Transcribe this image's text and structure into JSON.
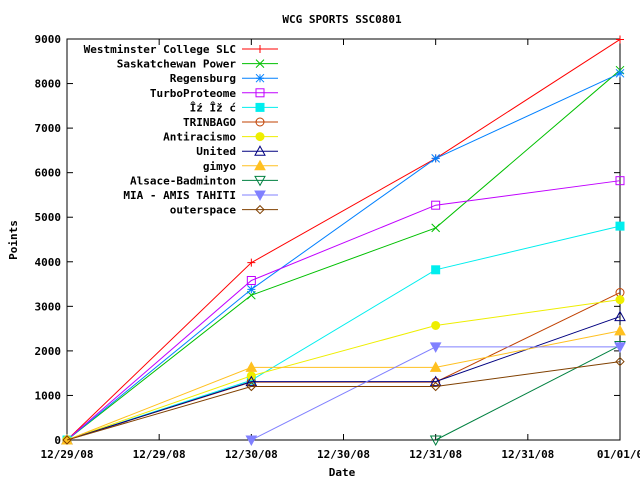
{
  "chart_data": {
    "type": "line",
    "title": "WCG SPORTS SSC0801",
    "xlabel": "Date",
    "ylabel": "Points",
    "x": [
      0,
      1,
      2,
      3
    ],
    "x_tick_labels": [
      "12/29/08",
      "12/29/08",
      "12/30/08",
      "12/30/08",
      "12/31/08",
      "12/31/08",
      "01/01/0"
    ],
    "ylim": [
      0,
      9000
    ],
    "y_ticks": [
      0,
      1000,
      2000,
      3000,
      4000,
      5000,
      6000,
      7000,
      8000,
      9000
    ],
    "grid": false,
    "legend_position": "top-left",
    "series": [
      {
        "name": "Westminster College SLC",
        "color": "#ff0000",
        "marker": "plus",
        "values": [
          0,
          3980,
          6320,
          8990
        ]
      },
      {
        "name": "Saskatchewan Power",
        "color": "#00c000",
        "marker": "cross",
        "values": [
          0,
          3250,
          4760,
          8300
        ]
      },
      {
        "name": "Regensburg",
        "color": "#0080ff",
        "marker": "star",
        "values": [
          0,
          3380,
          6320,
          8230
        ]
      },
      {
        "name": "TurboProteome",
        "color": "#c000ff",
        "marker": "square-open",
        "values": [
          0,
          3580,
          5270,
          5820
        ]
      },
      {
        "name": "Îź Îž ć",
        "color": "#00eeee",
        "marker": "square-filled",
        "values": [
          0,
          1340,
          3820,
          4800
        ]
      },
      {
        "name": "TRINBAGO",
        "color": "#c04000",
        "marker": "circle-open",
        "values": [
          0,
          1300,
          1300,
          3310
        ]
      },
      {
        "name": "Antiracismo",
        "color": "#eeee00",
        "marker": "circle-filled",
        "values": [
          0,
          1440,
          2570,
          3150
        ]
      },
      {
        "name": "United",
        "color": "#000080",
        "marker": "triangle-up-open",
        "values": [
          0,
          1310,
          1310,
          2770
        ]
      },
      {
        "name": "gimyo",
        "color": "#ffc020",
        "marker": "triangle-up-filled",
        "values": [
          0,
          1630,
          1630,
          2450
        ]
      },
      {
        "name": "Alsace-Badminton",
        "color": "#008040",
        "marker": "triangle-down-open",
        "values": [
          null,
          null,
          0,
          2120
        ]
      },
      {
        "name": "MIA - AMIS TAHITI",
        "color": "#8080ff",
        "marker": "triangle-down-filled",
        "values": [
          null,
          0,
          2090,
          2090
        ]
      },
      {
        "name": "outerspace",
        "color": "#804000",
        "marker": "diamond-open",
        "values": [
          0,
          1200,
          1200,
          1760
        ]
      }
    ]
  }
}
